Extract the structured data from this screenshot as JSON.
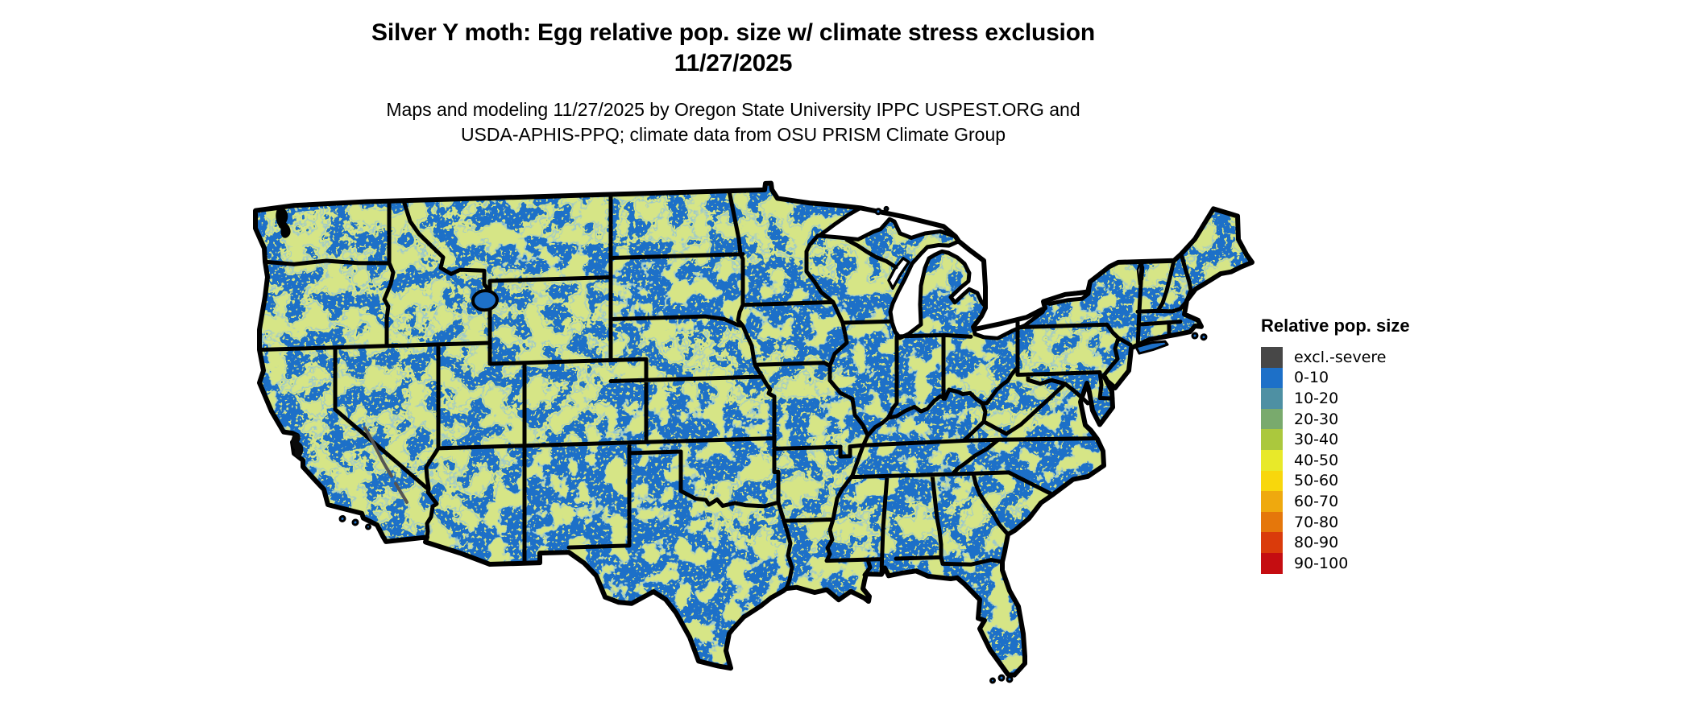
{
  "header": {
    "title_line1": "Silver Y moth: Egg relative pop. size w/ climate stress exclusion",
    "title_line2": "11/27/2025",
    "subtitle_line1": "Maps and modeling 11/27/2025 by Oregon State University IPPC USPEST.ORG and",
    "subtitle_line2": "USDA-APHIS-PPQ; climate data from OSU PRISM Climate Group"
  },
  "legend": {
    "title": "Relative pop. size",
    "items": [
      {
        "label": "excl.-severe",
        "color": "#474747"
      },
      {
        "label": "0-10",
        "color": "#1d70c8"
      },
      {
        "label": "10-20",
        "color": "#4e90a3"
      },
      {
        "label": "20-30",
        "color": "#79aa6d"
      },
      {
        "label": "30-40",
        "color": "#abc83d"
      },
      {
        "label": "40-50",
        "color": "#e8e929"
      },
      {
        "label": "50-60",
        "color": "#f8d70c"
      },
      {
        "label": "60-70",
        "color": "#efa90e"
      },
      {
        "label": "70-80",
        "color": "#e5770b"
      },
      {
        "label": "80-90",
        "color": "#da3b0b"
      },
      {
        "label": "90-100",
        "color": "#c50d11"
      }
    ]
  },
  "map": {
    "base_color": "#1d70c8",
    "speckle_color": "#abc83d",
    "fringe_colors": [
      "#4e90a3",
      "#79aa6d"
    ],
    "excluded_color": "#474747",
    "boundary_color": "#000000",
    "water_color": "#ffffff"
  }
}
